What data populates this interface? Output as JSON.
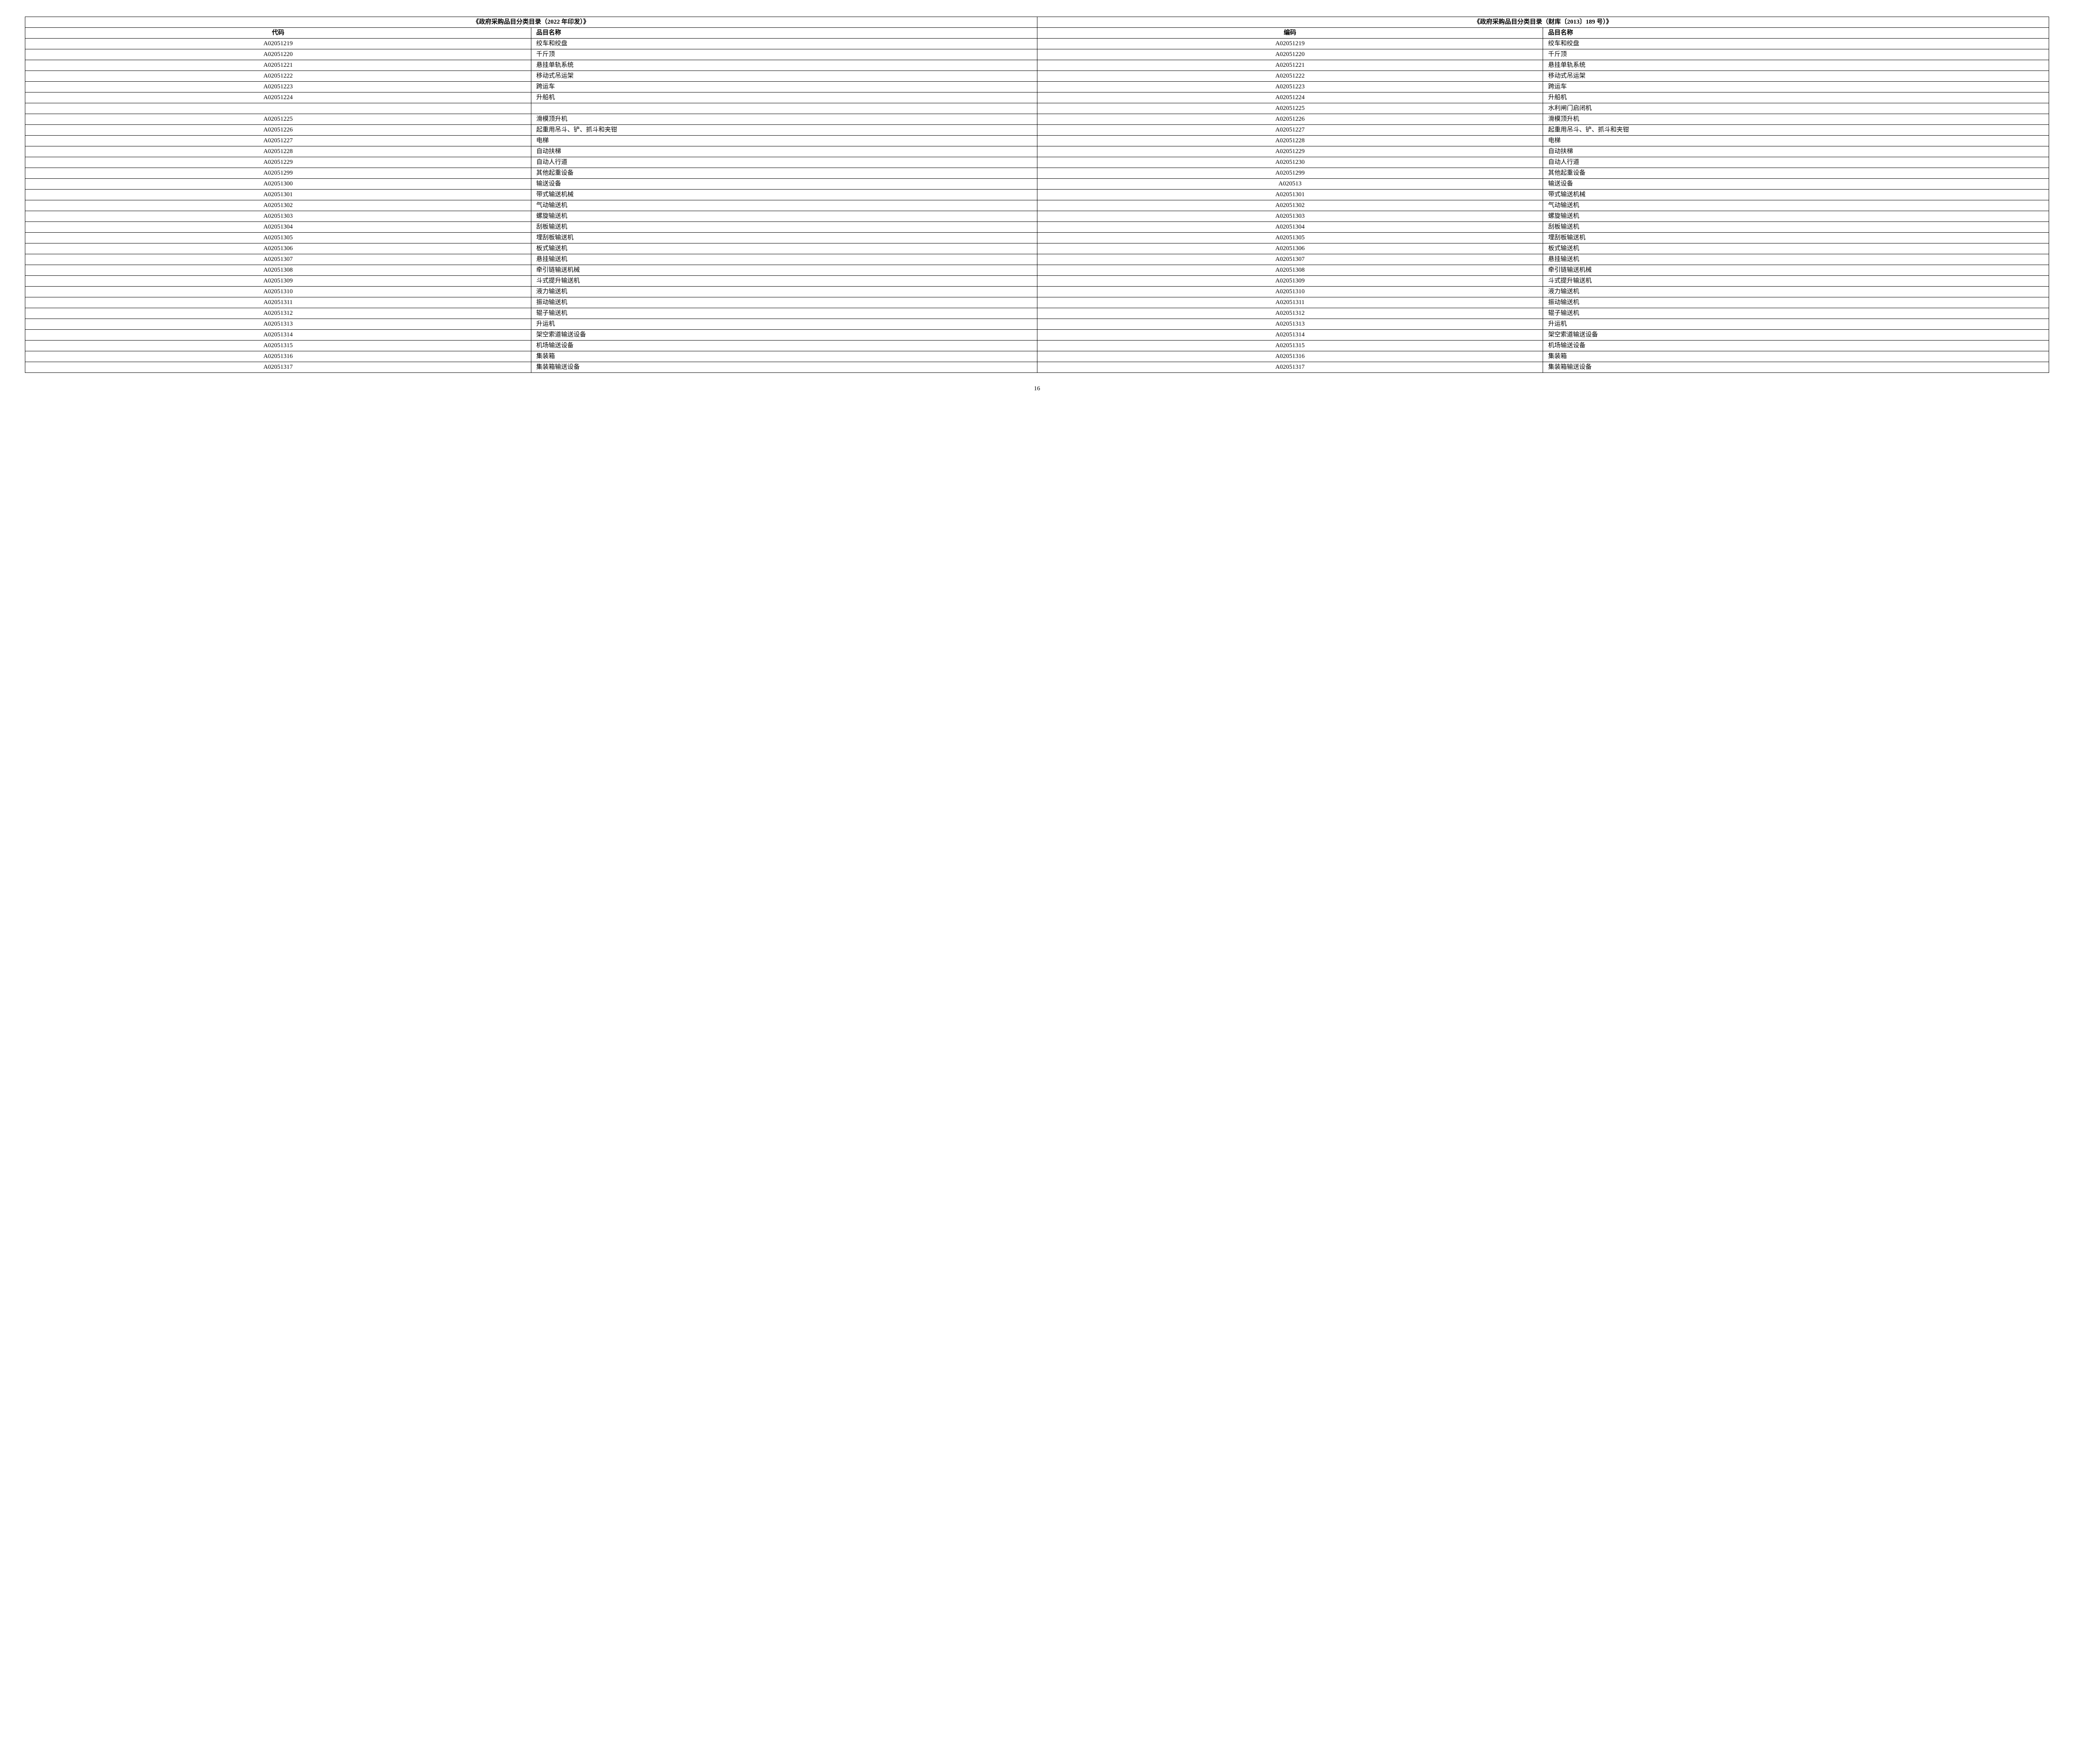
{
  "header_left": "《政府采购品目分类目录（2022 年印发）》",
  "header_right": "《政府采购品目分类目录（财库〔2013〕189 号）》",
  "col_left_code": "代码",
  "col_left_name": "品目名称",
  "col_right_code": "编码",
  "col_right_name": "品目名称",
  "page_number": "16",
  "rows": [
    {
      "lc": "A02051219",
      "ln": "绞车和绞盘",
      "rc": "A02051219",
      "rn": "绞车和绞盘"
    },
    {
      "lc": "A02051220",
      "ln": "千斤顶",
      "rc": "A02051220",
      "rn": "千斤顶"
    },
    {
      "lc": "A02051221",
      "ln": "悬挂单轨系统",
      "rc": "A02051221",
      "rn": "悬挂单轨系统"
    },
    {
      "lc": "A02051222",
      "ln": "移动式吊运架",
      "rc": "A02051222",
      "rn": "移动式吊运架"
    },
    {
      "lc": "A02051223",
      "ln": "跨运车",
      "rc": "A02051223",
      "rn": "跨运车"
    },
    {
      "lc": "A02051224",
      "ln": "升船机",
      "rc": "A02051224",
      "rn": "升船机"
    },
    {
      "lc": "",
      "ln": "",
      "rc": "A02051225",
      "rn": "水利闸门启闭机"
    },
    {
      "lc": "A02051225",
      "ln": "滑模顶升机",
      "rc": "A02051226",
      "rn": "滑模顶升机"
    },
    {
      "lc": "A02051226",
      "ln": "起重用吊斗、铲、抓斗和夹钳",
      "rc": "A02051227",
      "rn": "起重用吊斗、铲、抓斗和夹钳"
    },
    {
      "lc": "A02051227",
      "ln": "电梯",
      "rc": "A02051228",
      "rn": "电梯"
    },
    {
      "lc": "A02051228",
      "ln": "自动扶梯",
      "rc": "A02051229",
      "rn": "自动扶梯"
    },
    {
      "lc": "A02051229",
      "ln": "自动人行道",
      "rc": "A02051230",
      "rn": "自动人行道"
    },
    {
      "lc": "A02051299",
      "ln": "其他起重设备",
      "rc": "A02051299",
      "rn": "其他起重设备"
    },
    {
      "lc": "A02051300",
      "ln": "输送设备",
      "rc": "A020513",
      "rn": "输送设备"
    },
    {
      "lc": "A02051301",
      "ln": "带式输送机械",
      "rc": "A02051301",
      "rn": "带式输送机械"
    },
    {
      "lc": "A02051302",
      "ln": "气动输送机",
      "rc": "A02051302",
      "rn": "气动输送机"
    },
    {
      "lc": "A02051303",
      "ln": "螺旋输送机",
      "rc": "A02051303",
      "rn": "螺旋输送机"
    },
    {
      "lc": "A02051304",
      "ln": "刮板输送机",
      "rc": "A02051304",
      "rn": "刮板输送机"
    },
    {
      "lc": "A02051305",
      "ln": "埋刮板输送机",
      "rc": "A02051305",
      "rn": "埋刮板输送机"
    },
    {
      "lc": "A02051306",
      "ln": "板式输送机",
      "rc": "A02051306",
      "rn": "板式输送机"
    },
    {
      "lc": "A02051307",
      "ln": "悬挂输送机",
      "rc": "A02051307",
      "rn": "悬挂输送机"
    },
    {
      "lc": "A02051308",
      "ln": "牵引链输送机械",
      "rc": "A02051308",
      "rn": "牵引链输送机械"
    },
    {
      "lc": "A02051309",
      "ln": "斗式提升输送机",
      "rc": "A02051309",
      "rn": "斗式提升输送机"
    },
    {
      "lc": "A02051310",
      "ln": "液力输送机",
      "rc": "A02051310",
      "rn": "液力输送机"
    },
    {
      "lc": "A02051311",
      "ln": "振动输送机",
      "rc": "A02051311",
      "rn": "振动输送机"
    },
    {
      "lc": "A02051312",
      "ln": "辊子输送机",
      "rc": "A02051312",
      "rn": "辊子输送机"
    },
    {
      "lc": "A02051313",
      "ln": "升运机",
      "rc": "A02051313",
      "rn": "升运机"
    },
    {
      "lc": "A02051314",
      "ln": "架空索道输送设备",
      "rc": "A02051314",
      "rn": "架空索道输送设备"
    },
    {
      "lc": "A02051315",
      "ln": "机场输送设备",
      "rc": "A02051315",
      "rn": "机场输送设备"
    },
    {
      "lc": "A02051316",
      "ln": "集装箱",
      "rc": "A02051316",
      "rn": "集装箱"
    },
    {
      "lc": "A02051317",
      "ln": "集装箱输送设备",
      "rc": "A02051317",
      "rn": "集装箱输送设备"
    }
  ]
}
